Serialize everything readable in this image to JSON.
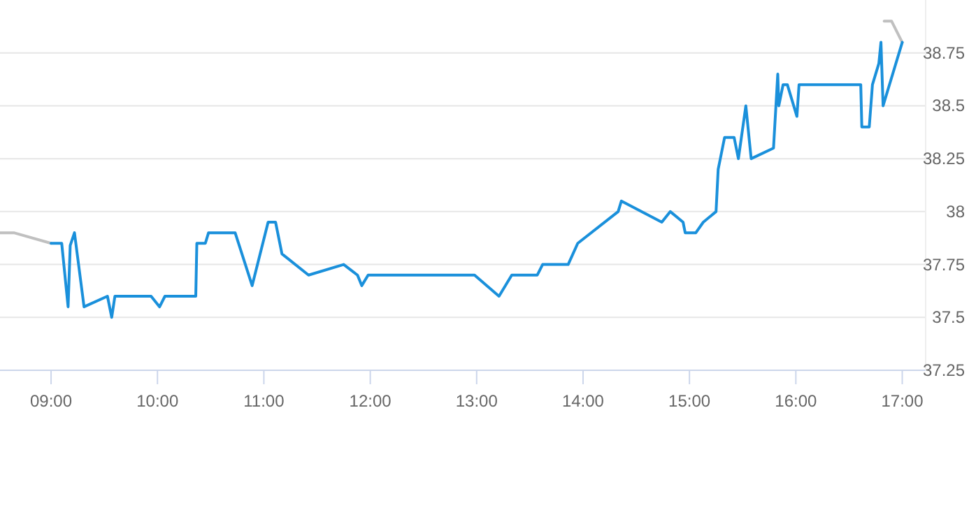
{
  "chart_data": {
    "type": "line",
    "xlim": [
      8.52,
      17.22
    ],
    "ylim": [
      37.25,
      39.0
    ],
    "xticks": [
      {
        "value": 9,
        "label": "09:00"
      },
      {
        "value": 10,
        "label": "10:00"
      },
      {
        "value": 11,
        "label": "11:00"
      },
      {
        "value": 12,
        "label": "12:00"
      },
      {
        "value": 13,
        "label": "13:00"
      },
      {
        "value": 14,
        "label": "14:00"
      },
      {
        "value": 15,
        "label": "15:00"
      },
      {
        "value": 16,
        "label": "16:00"
      },
      {
        "value": 17,
        "label": "17:00"
      }
    ],
    "yticks": [
      37.25,
      37.5,
      37.75,
      38,
      38.25,
      38.5,
      38.75
    ],
    "grid": "y",
    "marker": "none",
    "line_style": "solid",
    "series": [
      {
        "color": "#c0c0c0",
        "x": [
          8.52,
          8.65,
          9.0
        ],
        "values": [
          37.9,
          37.9,
          37.85
        ]
      },
      {
        "color": "#c0c0c0",
        "x": [
          16.83,
          16.9,
          17.0
        ],
        "values": [
          38.9,
          38.9,
          38.8
        ]
      },
      {
        "color": "#1a90db",
        "x": [
          9.0,
          9.1,
          9.16,
          9.18,
          9.22,
          9.31,
          9.53,
          9.57,
          9.6,
          9.94,
          10.02,
          10.07,
          10.36,
          10.37,
          10.45,
          10.48,
          10.73,
          10.89,
          11.04,
          11.11,
          11.17,
          11.42,
          11.75,
          11.88,
          11.92,
          11.98,
          12.98,
          13.21,
          13.33,
          13.57,
          13.62,
          13.86,
          13.95,
          14.33,
          14.36,
          14.74,
          14.82,
          14.94,
          14.96,
          15.06,
          15.13,
          15.25,
          15.27,
          15.33,
          15.42,
          15.46,
          15.53,
          15.58,
          15.79,
          15.83,
          15.84,
          15.88,
          15.92,
          16.01,
          16.03,
          16.61,
          16.62,
          16.69,
          16.72,
          16.78,
          16.8,
          16.82,
          17.0
        ],
        "values": [
          37.85,
          37.85,
          37.55,
          37.84,
          37.9,
          37.55,
          37.6,
          37.5,
          37.6,
          37.6,
          37.55,
          37.6,
          37.6,
          37.85,
          37.85,
          37.9,
          37.9,
          37.65,
          37.95,
          37.95,
          37.8,
          37.7,
          37.75,
          37.7,
          37.65,
          37.7,
          37.7,
          37.6,
          37.7,
          37.7,
          37.75,
          37.75,
          37.85,
          38.0,
          38.05,
          37.95,
          38.0,
          37.95,
          37.9,
          37.9,
          37.95,
          38.0,
          38.2,
          38.35,
          38.35,
          38.25,
          38.5,
          38.25,
          38.3,
          38.65,
          38.5,
          38.6,
          38.6,
          38.45,
          38.6,
          38.6,
          38.4,
          38.4,
          38.6,
          38.7,
          38.8,
          38.5,
          38.8
        ]
      }
    ]
  }
}
